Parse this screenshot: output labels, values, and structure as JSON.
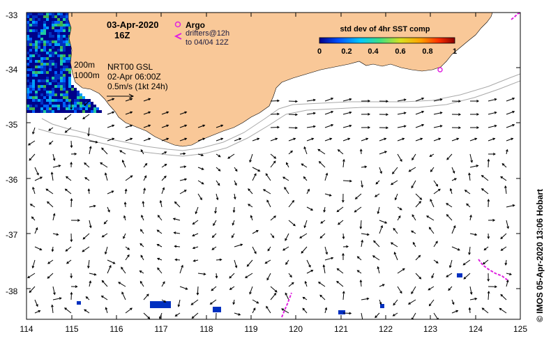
{
  "map": {
    "date": "03-Apr-2020",
    "hour": "16Z",
    "argo_label": "Argo",
    "drifters_line1": "drifters@12h",
    "drifters_line2": "to 04/04 12Z",
    "isobath_200": "200m",
    "isobath_1000": "1000m",
    "product_line1": "NRT00 GSL",
    "product_line2": "02-Apr 06:00Z",
    "scale_label": "0.5m/s (1kt 24h)",
    "credit": "© IMOS 05-Apr-2020 13:06 Hobart",
    "colors": {
      "land": "#f9c898",
      "ocean": "#ffffff",
      "isobath": "#a8a8a8",
      "argo": "#e020e0",
      "drifter": "#e020e0",
      "arrow": "#000000"
    }
  },
  "colorbar": {
    "title": "std dev of 4hr SST comp",
    "ticks": [
      "0",
      "0.2",
      "0.4",
      "0.6",
      "0.8",
      "1"
    ],
    "colors": [
      "#00008a",
      "#0050ff",
      "#00c8ff",
      "#40e080",
      "#d8e020",
      "#ffa000",
      "#ff3000",
      "#8a0000"
    ]
  },
  "axes": {
    "x_ticks": [
      "114",
      "115",
      "116",
      "117",
      "118",
      "119",
      "120",
      "121",
      "122",
      "123",
      "124",
      "125"
    ],
    "y_ticks": [
      "-33",
      "-34",
      "-35",
      "-36",
      "-37",
      "-38"
    ]
  }
}
